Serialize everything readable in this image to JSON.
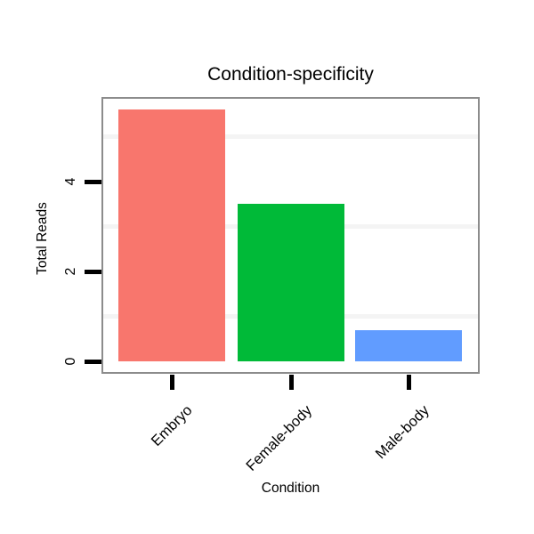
{
  "chart_data": {
    "type": "bar",
    "title": "Condition-specificity",
    "xlabel": "Condition",
    "ylabel": "Total Reads",
    "categories": [
      "Embryo",
      "Female-body",
      "Male-body"
    ],
    "values": [
      5.6,
      3.5,
      0.7
    ],
    "bar_colors": [
      "#F8766D",
      "#00BA38",
      "#619CFF"
    ],
    "ylim": [
      0,
      5.8
    ],
    "yticks": [
      0,
      2,
      4
    ],
    "minor_gridlines_y": [
      1,
      3,
      5
    ],
    "grid": "faint horizontal lines at odd values, behind bars",
    "legend_position": "none",
    "styles": {
      "gridline_color": "#f4f4f4",
      "panel_border_color": "#8c8c8c",
      "tick_color": "#000000",
      "text_color": "#000000",
      "background": "#ffffff"
    }
  }
}
